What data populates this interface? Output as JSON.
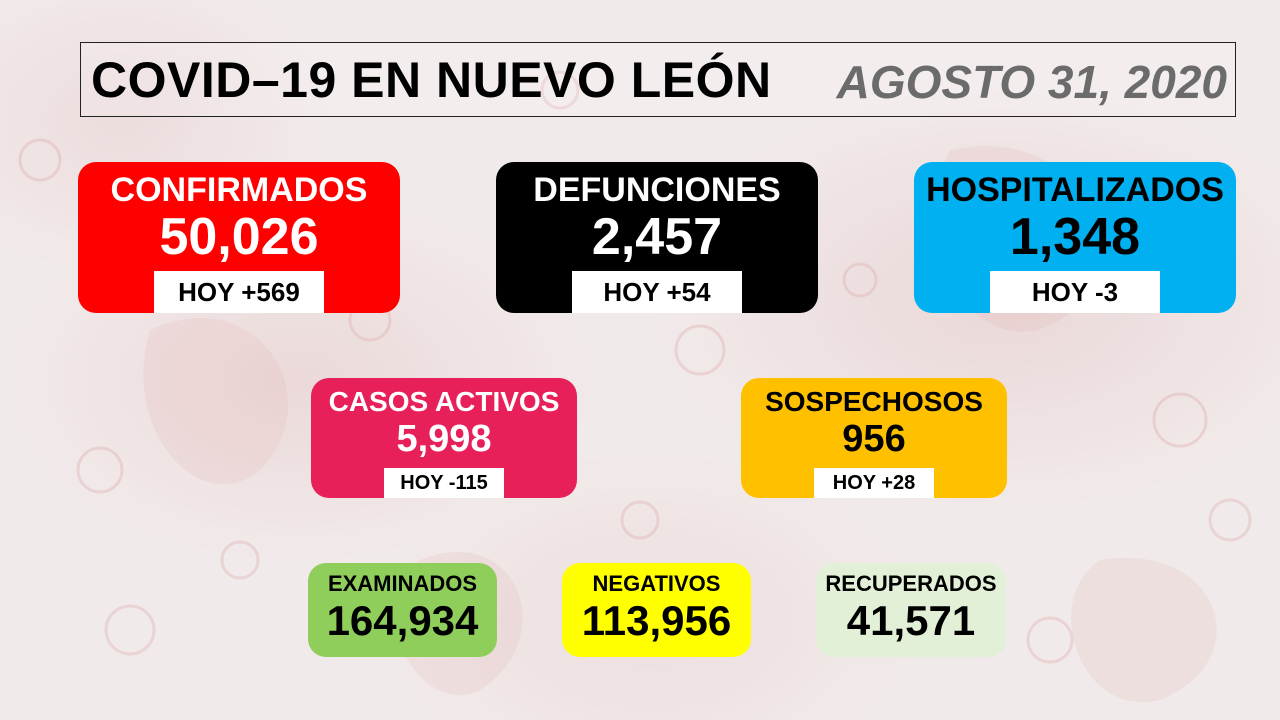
{
  "header": {
    "title": "COVID–19 EN NUEVO LEÓN",
    "date": "AGOSTO 31, 2020"
  },
  "cards": {
    "confirmados": {
      "label": "CONFIRMADOS",
      "value": "50,026",
      "today": "HOY +569",
      "color": "#ff0000"
    },
    "defunciones": {
      "label": "DEFUNCIONES",
      "value": "2,457",
      "today": "HOY +54",
      "color": "#000000"
    },
    "hospitalizados": {
      "label": "HOSPITALIZADOS",
      "value": "1,348",
      "today": "HOY -3",
      "color": "#00b0f0"
    },
    "activos": {
      "label": "CASOS ACTIVOS",
      "value": "5,998",
      "today": "HOY -115",
      "color": "#e8205a"
    },
    "sospechosos": {
      "label": "SOSPECHOSOS",
      "value": "956",
      "today": "HOY +28",
      "color": "#ffc000"
    },
    "examinados": {
      "label": "EXAMINADOS",
      "value": "164,934",
      "color": "#8fce5a"
    },
    "negativos": {
      "label": "NEGATIVOS",
      "value": "113,956",
      "color": "#ffff00"
    },
    "recuperados": {
      "label": "RECUPERADOS",
      "value": "41,571",
      "color": "#e3f0d8"
    }
  }
}
